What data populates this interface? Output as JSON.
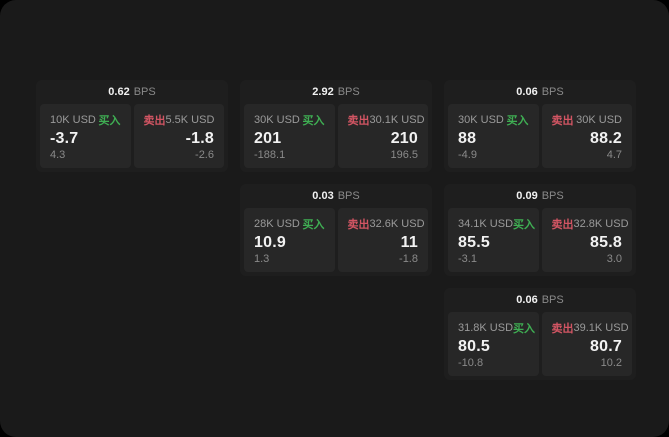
{
  "labels": {
    "bps_unit": "BPS",
    "buy": "买入",
    "sell": "卖出"
  },
  "colors": {
    "background": "#1a1a1a",
    "card": "#1e1e1e",
    "panel": "#272727",
    "text_primary": "#f2f2f2",
    "text_secondary": "#9a9a9a",
    "text_muted": "#8a8a8a",
    "buy_green": "#3fae53",
    "sell_red": "#d25563"
  },
  "cards": [
    {
      "bps": "0.62",
      "buy": {
        "amount": "10K USD",
        "price": "-3.7",
        "delta": "4.3"
      },
      "sell": {
        "amount": "5.5K USD",
        "price": "-1.8",
        "delta": "-2.6"
      }
    },
    {
      "bps": "2.92",
      "buy": {
        "amount": "30K USD",
        "price": "201",
        "delta": "-188.1"
      },
      "sell": {
        "amount": "30.1K USD",
        "price": "210",
        "delta": "196.5"
      }
    },
    {
      "bps": "0.06",
      "buy": {
        "amount": "30K USD",
        "price": "88",
        "delta": "-4.9"
      },
      "sell": {
        "amount": "30K USD",
        "price": "88.2",
        "delta": "4.7"
      }
    },
    {
      "bps": "0.03",
      "buy": {
        "amount": "28K USD",
        "price": "10.9",
        "delta": "1.3"
      },
      "sell": {
        "amount": "32.6K USD",
        "price": "11",
        "delta": "-1.8"
      }
    },
    {
      "bps": "0.09",
      "buy": {
        "amount": "34.1K USD",
        "price": "85.5",
        "delta": "-3.1"
      },
      "sell": {
        "amount": "32.8K USD",
        "price": "85.8",
        "delta": "3.0"
      }
    },
    {
      "bps": "0.06",
      "buy": {
        "amount": "31.8K USD",
        "price": "80.5",
        "delta": "-10.8"
      },
      "sell": {
        "amount": "39.1K USD",
        "price": "80.7",
        "delta": "10.2"
      }
    }
  ]
}
